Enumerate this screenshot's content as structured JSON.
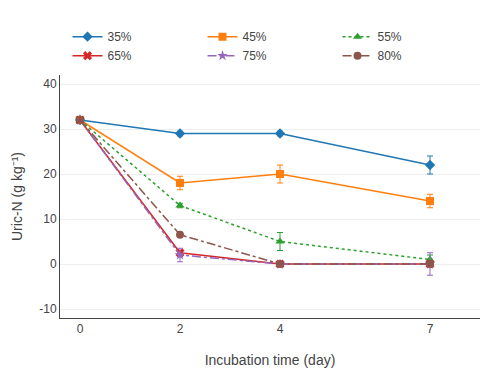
{
  "chart_data": {
    "type": "line",
    "xlabel": "Incubation time (day)",
    "ylabel": "Uric-N (g kg⁻¹)",
    "x": [
      0,
      2,
      4,
      7
    ],
    "series": [
      {
        "name": "35%",
        "values": [
          32,
          29,
          29,
          22
        ],
        "yerr": [
          0.3,
          0.5,
          0.5,
          2.0
        ],
        "marker": "diamond",
        "line_style": "solid"
      },
      {
        "name": "45%",
        "values": [
          32,
          18,
          20,
          14
        ],
        "yerr": [
          0.3,
          1.5,
          2.0,
          1.5
        ],
        "marker": "square",
        "line_style": "solid"
      },
      {
        "name": "55%",
        "values": [
          32,
          13,
          5,
          1
        ],
        "yerr": [
          0.3,
          0.5,
          2.0,
          1.0
        ],
        "marker": "triangle",
        "line_style": "dotted"
      },
      {
        "name": "65%",
        "values": [
          32,
          2.5,
          0,
          0
        ],
        "yerr": [
          0.3,
          0.5,
          0.2,
          0.2
        ],
        "marker": "x",
        "line_style": "solid"
      },
      {
        "name": "75%",
        "values": [
          32,
          2.0,
          0,
          0
        ],
        "yerr": [
          0.3,
          1.5,
          0.2,
          2.5
        ],
        "marker": "star",
        "line_style": "dashdot"
      },
      {
        "name": "80%",
        "values": [
          32,
          6.5,
          0,
          0
        ],
        "yerr": [
          0.3,
          0.5,
          0.3,
          0.3
        ],
        "marker": "circle",
        "line_style": "dashdot"
      }
    ],
    "xlim": [
      -0.4,
      8.0
    ],
    "xticks": [
      0,
      2,
      4,
      7
    ],
    "ylim": [
      -12,
      42
    ],
    "yticks": [
      -10,
      0,
      10,
      20,
      30,
      40
    ],
    "grid": "y",
    "legend": "top"
  }
}
